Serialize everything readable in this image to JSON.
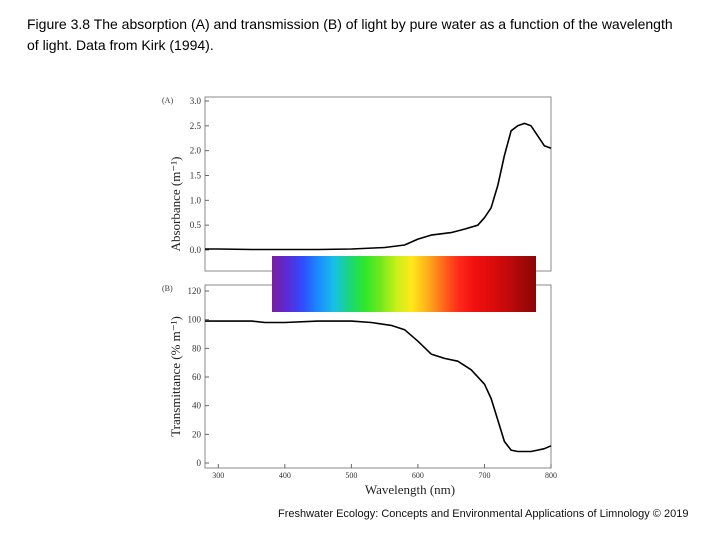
{
  "caption": "Figure 3.8 The absorption (A) and transmission (B) of light by pure water as a function of the wavelength of light. Data from Kirk (1994).",
  "footer": "Freshwater Ecology: Concepts and Environmental Applications of Limnology © 2019",
  "chart_data": [
    {
      "type": "line",
      "panel_label": "(A)",
      "ylabel": "Absorbance (m⁻¹)",
      "xlim": [
        280,
        800
      ],
      "ylim": [
        0,
        3.0
      ],
      "yticks": [
        0.0,
        0.5,
        1.0,
        1.5,
        2.0,
        2.5,
        3.0
      ],
      "ytick_labels": [
        "0.0",
        "0.5",
        "1.0",
        "1.5",
        "2.0",
        "2.5",
        "3.0"
      ],
      "grid": false,
      "x": [
        280,
        300,
        350,
        400,
        450,
        500,
        550,
        580,
        600,
        620,
        650,
        670,
        690,
        700,
        710,
        720,
        730,
        740,
        750,
        760,
        770,
        780,
        790,
        800
      ],
      "y": [
        0.02,
        0.02,
        0.01,
        0.01,
        0.01,
        0.02,
        0.05,
        0.1,
        0.22,
        0.3,
        0.35,
        0.42,
        0.5,
        0.65,
        0.85,
        1.3,
        1.9,
        2.4,
        2.5,
        2.55,
        2.5,
        2.3,
        2.1,
        2.05
      ]
    },
    {
      "type": "line",
      "panel_label": "(B)",
      "ylabel": "Transmittance (% m⁻¹)",
      "xlabel": "Wavelength (nm)",
      "xlim": [
        280,
        800
      ],
      "ylim": [
        0,
        120
      ],
      "xticks": [
        300,
        400,
        500,
        600,
        700,
        800
      ],
      "xtick_labels": [
        "300",
        "400",
        "500",
        "600",
        "700",
        "800"
      ],
      "yticks": [
        0,
        20,
        40,
        60,
        80,
        100,
        120
      ],
      "ytick_labels": [
        "0",
        "20",
        "40",
        "60",
        "80",
        "100",
        "120"
      ],
      "grid": false,
      "x": [
        280,
        300,
        350,
        370,
        400,
        450,
        500,
        530,
        560,
        580,
        600,
        620,
        640,
        660,
        680,
        700,
        710,
        720,
        730,
        740,
        750,
        760,
        770,
        780,
        790,
        800
      ],
      "y": [
        99,
        99,
        99,
        98,
        98,
        99,
        99,
        98,
        96,
        93,
        85,
        76,
        73,
        71,
        65,
        55,
        45,
        30,
        15,
        9,
        8,
        8,
        8,
        9,
        10,
        12
      ]
    }
  ],
  "spectrum_colors": [
    "#7a1fa2",
    "#5a2bd6",
    "#2f4dff",
    "#1a8cff",
    "#18c0e8",
    "#19d67a",
    "#2ee82a",
    "#73e81c",
    "#c8f01a",
    "#ffe81a",
    "#ffb01a",
    "#ff6a1a",
    "#ff2a1a",
    "#f21010",
    "#e00c0c",
    "#c80a0a",
    "#a80808",
    "#8a0606"
  ]
}
